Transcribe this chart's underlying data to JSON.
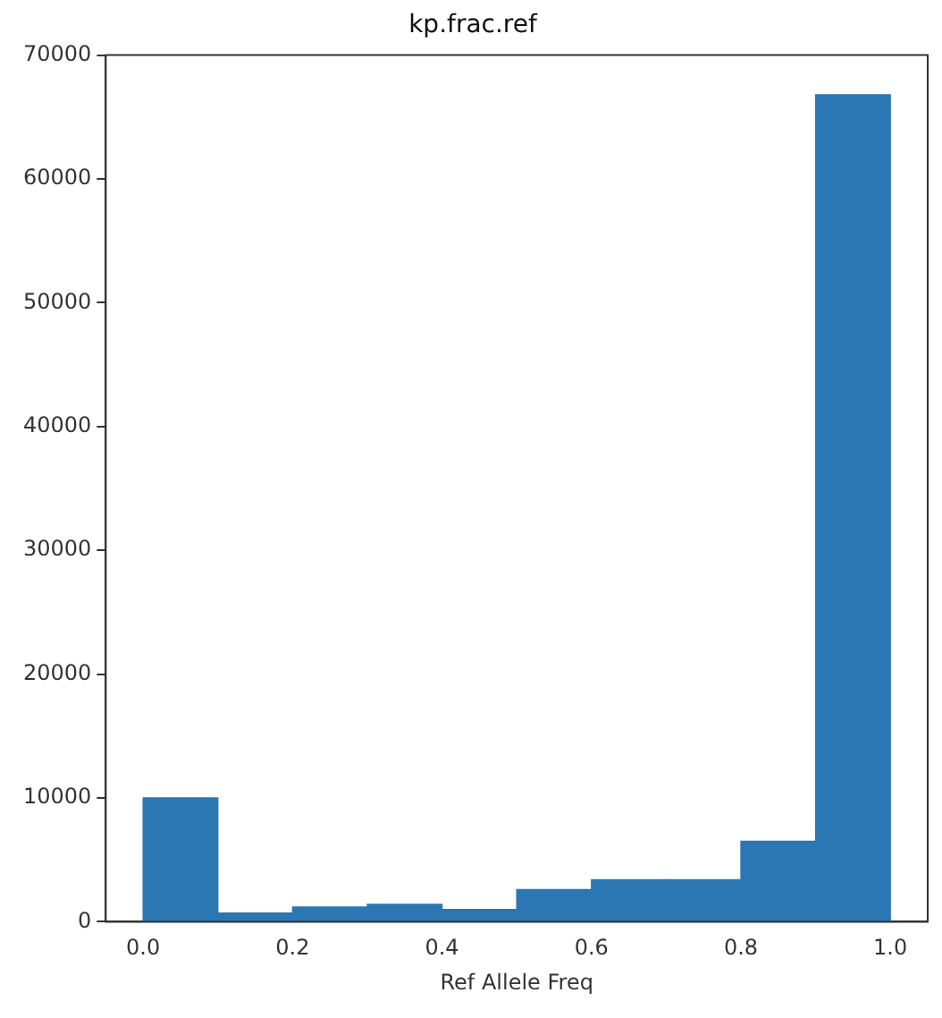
{
  "chart_data": {
    "type": "histogram",
    "title": "kp.frac.ref",
    "xlabel": "Ref Allele Freq",
    "bins": [
      0,
      0.1,
      0.2,
      0.3,
      0.4,
      0.5,
      0.6,
      0.7,
      0.8,
      0.9,
      1.0
    ],
    "values": [
      10000,
      700,
      1200,
      1400,
      1000,
      2600,
      3400,
      3400,
      6500,
      66800
    ],
    "color": "#2b77b4",
    "xlim": [
      -0.05,
      1.05
    ],
    "xticks": [
      {
        "value": 0,
        "label": "0.0"
      },
      {
        "value": 0.2,
        "label": "0.2"
      },
      {
        "value": 0.4,
        "label": "0.4"
      },
      {
        "value": 0.6,
        "label": "0.6"
      },
      {
        "value": 0.8,
        "label": "0.8"
      },
      {
        "value": 1,
        "label": "1.0"
      }
    ],
    "ylim": [
      0,
      70000
    ],
    "yticks": [
      0,
      10000,
      20000,
      30000,
      40000,
      50000,
      60000,
      70000
    ],
    "grid": false,
    "legend": false
  }
}
